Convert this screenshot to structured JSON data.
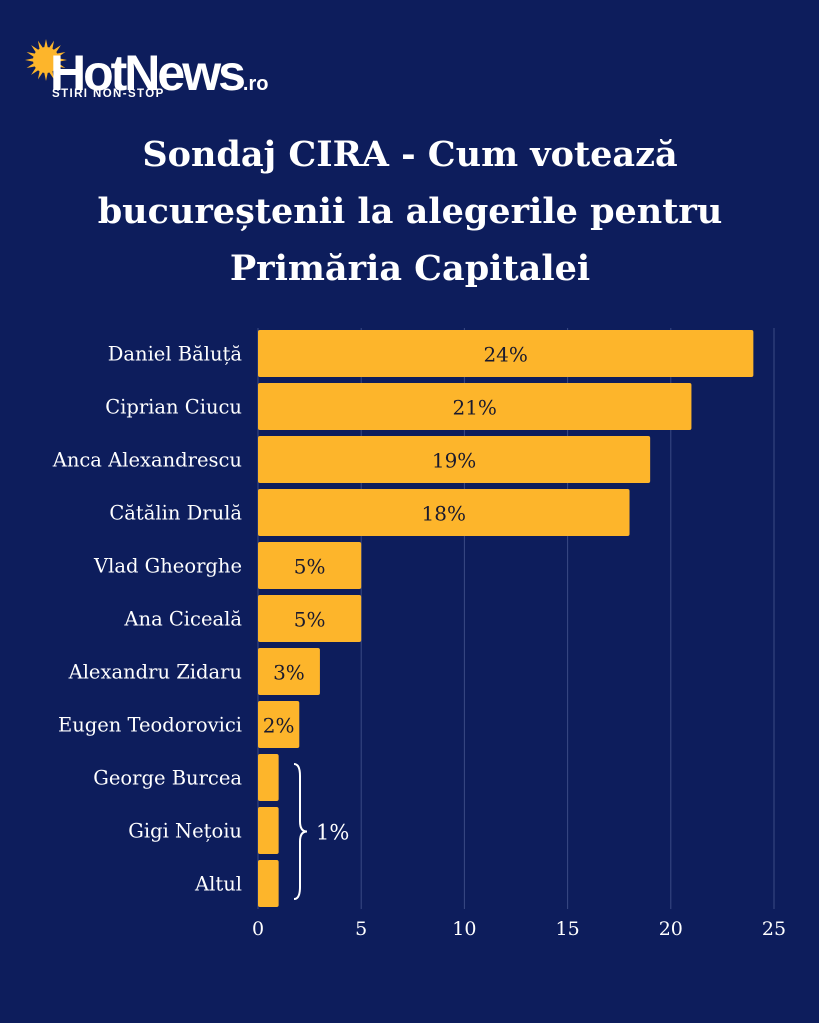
{
  "brand": {
    "name": "HotNews",
    "suffix": ".ro",
    "tagline": "STIRI NON-STOP"
  },
  "title_lines": [
    "Sondaj CIRA - Cum votează",
    "bucureștenii la alegerile pentru",
    "Primăria Capitalei"
  ],
  "colors": {
    "background": "#0d1d5c",
    "bar": "#fdb52b",
    "grid": "#3a4a85",
    "text": "#ffffff",
    "bar_label": "#1a1a2e"
  },
  "chart_data": {
    "type": "bar",
    "orientation": "horizontal",
    "categories": [
      "Daniel Băluță",
      "Ciprian Ciucu",
      "Anca Alexandrescu",
      "Cătălin Drulă",
      "Vlad Gheorghe",
      "Ana Ciceală",
      "Alexandru Zidaru",
      "Eugen Teodorovici",
      "George Burcea",
      "Gigi Nețoiu",
      "Altul"
    ],
    "values": [
      24,
      21,
      19,
      18,
      5,
      5,
      3,
      2,
      1,
      1,
      1
    ],
    "data_labels": [
      "24%",
      "21%",
      "19%",
      "18%",
      "5%",
      "5%",
      "3%",
      "2%",
      "",
      "",
      ""
    ],
    "group_annotation": {
      "text": "1%",
      "categories": [
        "George Burcea",
        "Gigi Nețoiu",
        "Altul"
      ]
    },
    "xlim": [
      0,
      25
    ],
    "xticks": [
      0,
      5,
      10,
      15,
      20,
      25
    ],
    "xlabel": "",
    "ylabel": "",
    "grid": "vertical"
  }
}
